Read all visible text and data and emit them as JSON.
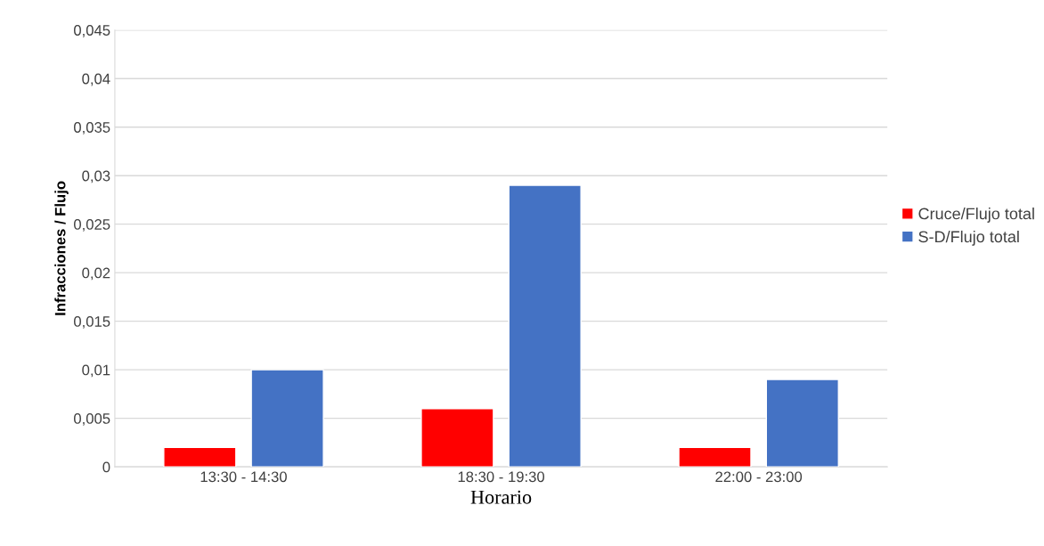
{
  "chart_data": {
    "type": "bar",
    "xlabel": "Horario",
    "ylabel": "Infracciones / Flujo",
    "categories": [
      "13:30 - 14:30",
      "18:30 - 19:30",
      "22:00 - 23:00"
    ],
    "series": [
      {
        "name": "Cruce/Flujo total",
        "color": "#ff0000",
        "values": [
          0.002,
          0.006,
          0.002
        ]
      },
      {
        "name": "S-D/Flujo total",
        "color": "#4472c4",
        "values": [
          0.01,
          0.029,
          0.009
        ]
      }
    ],
    "ylim": [
      0,
      0.045
    ],
    "yticks": [
      0,
      {
        "value": 0.005,
        "label": "0,005"
      },
      {
        "value": 0.01,
        "label": "0,01"
      },
      {
        "value": 0.015,
        "label": "0,015"
      },
      {
        "value": 0.02,
        "label": "0,02"
      },
      {
        "value": 0.025,
        "label": "0,025"
      },
      {
        "value": 0.03,
        "label": "0,03"
      },
      {
        "value": 0.035,
        "label": "0,035"
      },
      {
        "value": 0.04,
        "label": "0,04"
      },
      {
        "value": 0.045,
        "label": "0,045"
      }
    ],
    "grid": "y",
    "legend": "right"
  }
}
